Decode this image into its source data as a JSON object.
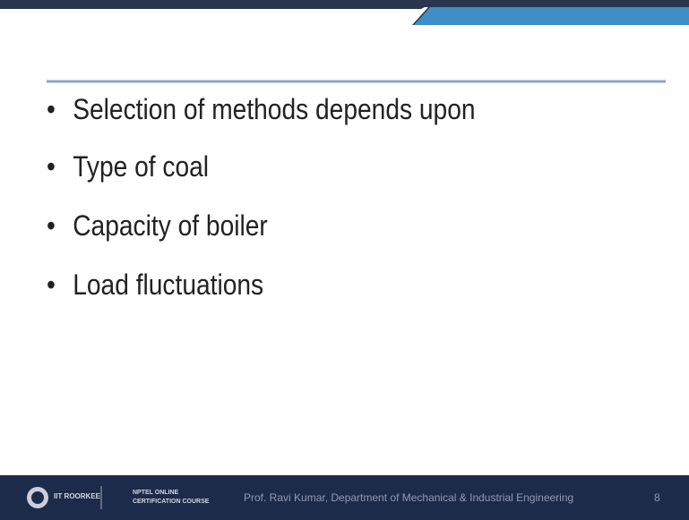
{
  "bullets": [
    "Selection of methods depends upon",
    "Type of coal",
    "Capacity of boiler",
    "Load fluctuations"
  ],
  "footer": {
    "logo1": "IIT ROORKEE",
    "logo2_line1": "NPTEL ONLINE",
    "logo2_line2": "CERTIFICATION COURSE",
    "credit": "Prof. Ravi Kumar, Department of Mechanical & Industrial Engineering",
    "page": "8"
  }
}
